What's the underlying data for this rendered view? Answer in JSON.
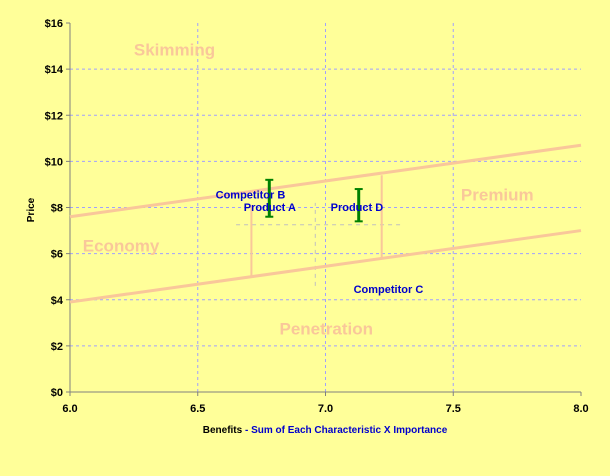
{
  "chart_data": {
    "type": "line",
    "title": "",
    "xlabel": "Benefits",
    "xlabel_suffix": "Sum of Each Characteristic X Importance",
    "xlabel_separator": " - ",
    "ylabel": "Price",
    "xlim": [
      6.0,
      8.0
    ],
    "ylim": [
      0,
      16
    ],
    "x_ticks": [
      6.0,
      6.5,
      7.0,
      7.5,
      8.0
    ],
    "x_tick_labels": [
      "6.0",
      "6.5",
      "7.0",
      "7.5",
      "8.0"
    ],
    "y_ticks": [
      0,
      2,
      4,
      6,
      8,
      10,
      12,
      14,
      16
    ],
    "y_tick_labels": [
      "$0",
      "$2",
      "$4",
      "$6",
      "$8",
      "$10",
      "$12",
      "$14",
      "$16"
    ],
    "grid": true,
    "series": [
      {
        "x": [
          6.0,
          8.0
        ],
        "y": [
          7.6,
          10.7
        ],
        "color": "#F9C79A"
      },
      {
        "x": [
          6.0,
          8.0
        ],
        "y": [
          3.9,
          7.0
        ],
        "color": "#F9C79A"
      }
    ],
    "vertical_segments": [
      {
        "x": 6.71,
        "y_low": 5.0,
        "y_high": 8.1,
        "color": "#F9C79A"
      },
      {
        "x": 7.22,
        "y_low": 5.75,
        "y_high": 9.4,
        "color": "#F9C79A"
      }
    ],
    "crosshairs": [
      {
        "x": 6.96,
        "y": 7.25,
        "x_range": [
          6.65,
          7.3
        ],
        "y_range": [
          4.6,
          8.2
        ],
        "color": "#C0C0C0"
      }
    ],
    "error_bars": [
      {
        "x": 6.78,
        "y_low": 7.6,
        "y_high": 9.2,
        "color": "#008000"
      },
      {
        "x": 7.13,
        "y_low": 7.4,
        "y_high": 8.8,
        "color": "#008000"
      }
    ],
    "region_labels": [
      {
        "text": "Skimming",
        "x": 6.25,
        "y": 14.6
      },
      {
        "text": "Premium",
        "x": 7.53,
        "y": 8.3
      },
      {
        "text": "Economy",
        "x": 6.05,
        "y": 6.1
      },
      {
        "text": "Penetration",
        "x": 6.82,
        "y": 2.5
      }
    ],
    "point_labels": [
      {
        "text": "Competitor B",
        "x": 6.57,
        "y": 8.4
      },
      {
        "text": "Product A",
        "x": 6.68,
        "y": 7.85
      },
      {
        "text": "Product D",
        "x": 7.02,
        "y": 7.85
      },
      {
        "text": "Competitor C",
        "x": 7.11,
        "y": 4.3
      }
    ],
    "colors": {
      "background": "#FFFF99",
      "grid": "#A0A0FF",
      "axis": "#808080",
      "region_text": "#F9C79A",
      "point_text": "#0000CC",
      "xlabel_suffix": "#0000CC"
    }
  }
}
